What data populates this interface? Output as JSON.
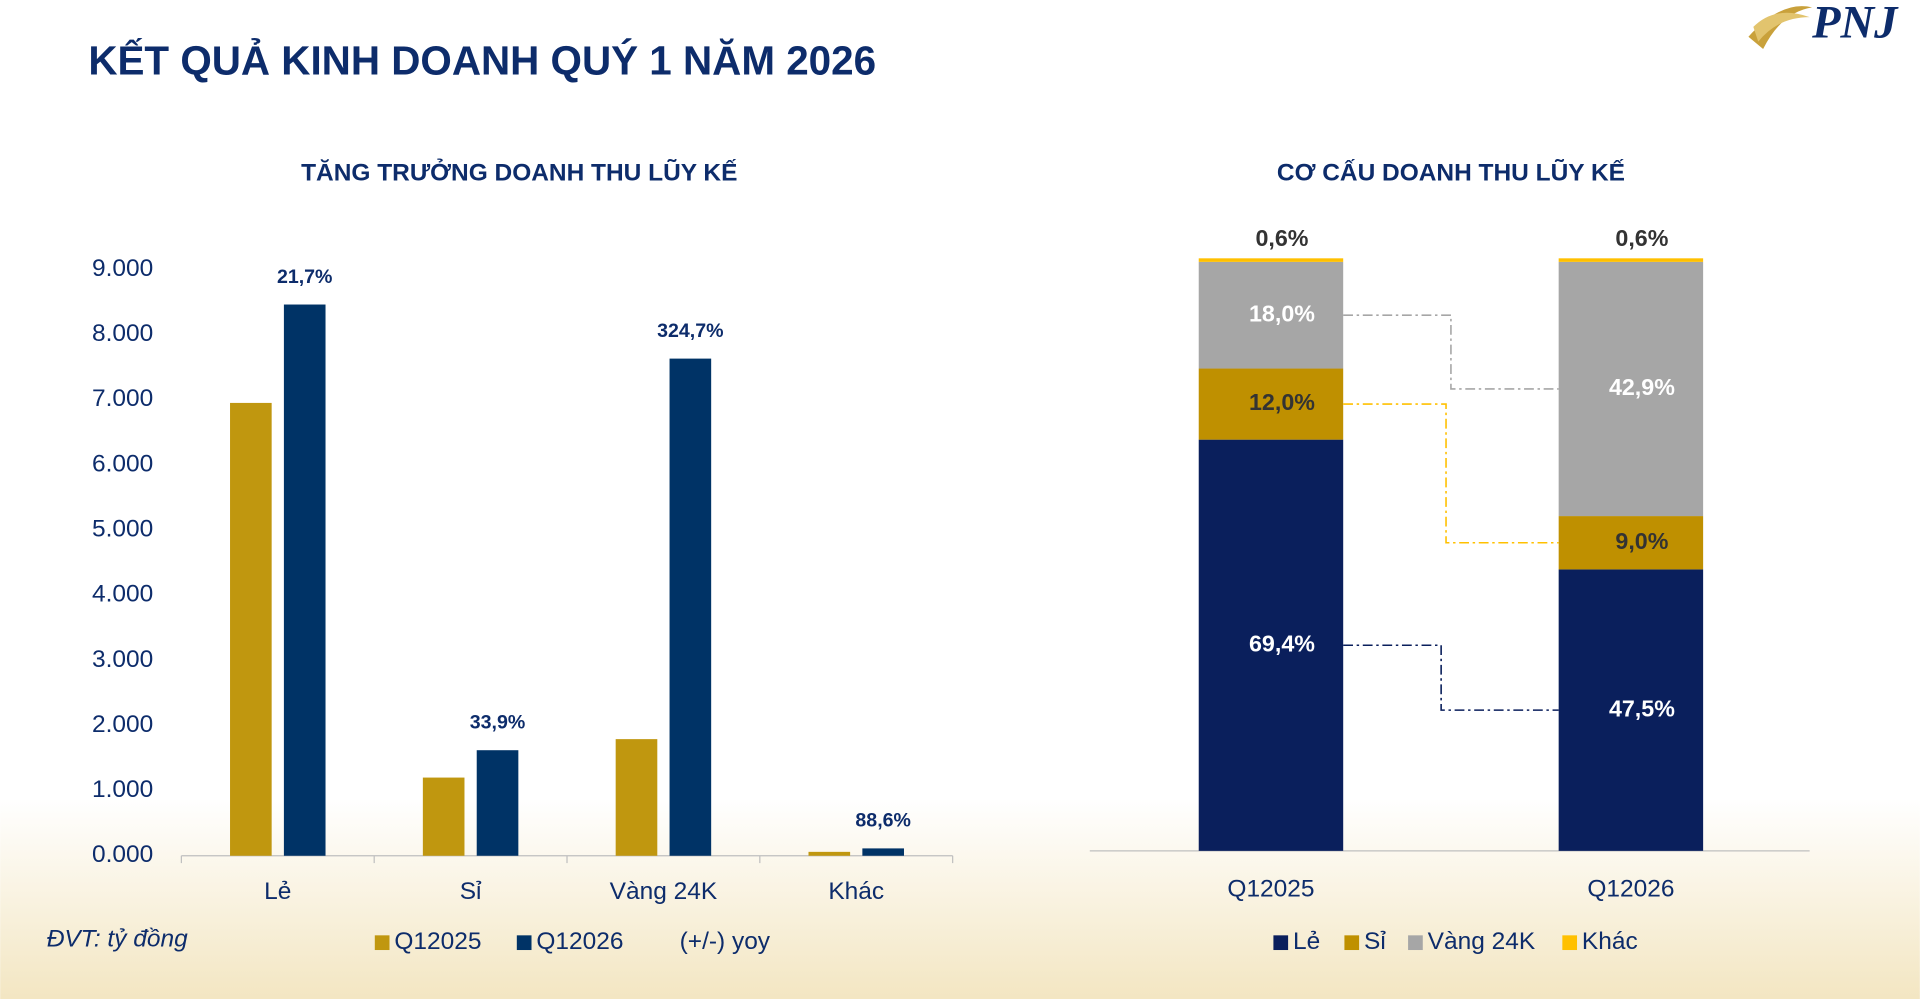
{
  "slide": {
    "title": "KẾT QUẢ KINH DOANH QUÝ 1 NĂM 2026",
    "logo": "PNJ",
    "unit_note": "ĐVT: tỷ đồng"
  },
  "chart_data": [
    {
      "type": "bar",
      "title": "TĂNG TRƯỞNG DOANH THU LŨY KẾ",
      "categories": [
        "Lẻ",
        "Sỉ",
        "Vàng 24K",
        "Khác"
      ],
      "series": [
        {
          "name": "Q12025",
          "color": "#C0970F",
          "values": [
            6950,
            1200,
            1790,
            60
          ]
        },
        {
          "name": "Q12026",
          "color": "#003366",
          "values": [
            8460,
            1620,
            7630,
            113
          ]
        },
        {
          "name": "(+/-) yoy",
          "values": [
            21.7,
            33.9,
            324.7,
            88.6
          ],
          "value_labels": [
            "21,7%",
            "33,9%",
            "324,7%",
            "88,6%"
          ]
        }
      ],
      "ylim": [
        0,
        9000
      ],
      "yticks": [
        {
          "value": 0,
          "label": "0.000"
        },
        {
          "value": 1000,
          "label": "1.000"
        },
        {
          "value": 2000,
          "label": "2.000"
        },
        {
          "value": 3000,
          "label": "3.000"
        },
        {
          "value": 4000,
          "label": "4.000"
        },
        {
          "value": 5000,
          "label": "5.000"
        },
        {
          "value": 6000,
          "label": "6.000"
        },
        {
          "value": 7000,
          "label": "7.000"
        },
        {
          "value": 8000,
          "label": "8.000"
        },
        {
          "value": 9000,
          "label": "9.000"
        }
      ],
      "grid": false,
      "legend": "bottom"
    },
    {
      "type": "stacked_bar",
      "title": "CƠ CẤU DOANH THU LŨY KẾ",
      "categories": [
        "Q12025",
        "Q12026"
      ],
      "series": [
        {
          "name": "Lẻ",
          "color": "#0A1F5C",
          "values": [
            69.4,
            47.5
          ],
          "value_labels": [
            "69,4%",
            "47,5%"
          ]
        },
        {
          "name": "Sỉ",
          "color": "#BF9000",
          "values": [
            12.0,
            9.0
          ],
          "value_labels": [
            "12,0%",
            "9,0%"
          ]
        },
        {
          "name": "Vàng 24K",
          "color": "#A6A6A6",
          "values": [
            18.0,
            42.9
          ],
          "value_labels": [
            "18,0%",
            "42,9%"
          ]
        },
        {
          "name": "Khác",
          "color": "#FFC000",
          "values": [
            0.6,
            0.6
          ],
          "value_labels": [
            "0,6%",
            "0,6%"
          ]
        }
      ],
      "ylim": [
        0,
        100
      ],
      "legend": "bottom"
    }
  ]
}
